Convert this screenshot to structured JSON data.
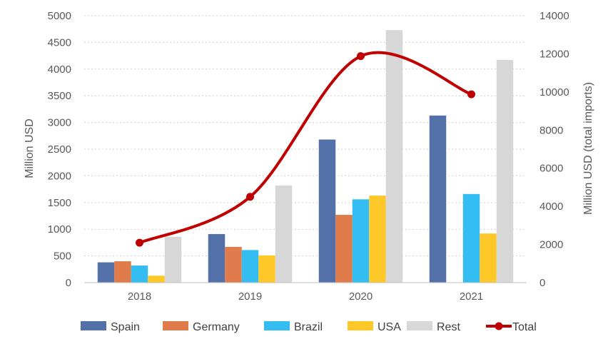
{
  "chart_data": {
    "type": "bar",
    "categories": [
      "2018",
      "2019",
      "2020",
      "2021"
    ],
    "series": [
      {
        "name": "Spain",
        "color": "#5470a8",
        "values": [
          380,
          910,
          2680,
          3130
        ]
      },
      {
        "name": "Germany",
        "color": "#e07b4c",
        "values": [
          400,
          670,
          1270,
          0
        ]
      },
      {
        "name": "Brazil",
        "color": "#33bdf0",
        "values": [
          320,
          610,
          1560,
          1660
        ]
      },
      {
        "name": "USA",
        "color": "#ffc829",
        "values": [
          130,
          510,
          1630,
          920
        ]
      },
      {
        "name": "Rest",
        "color": "#d7d7d7",
        "values": [
          860,
          1820,
          4730,
          4170
        ]
      }
    ],
    "line_series": {
      "name": "Total",
      "color": "#c00000",
      "values": [
        2090,
        4500,
        11880,
        9880
      ],
      "axis": "right"
    },
    "ylabel": "Million USD",
    "y2label": "Million USD (total imports)",
    "ylim": [
      0,
      5000
    ],
    "y2lim": [
      0,
      14000
    ],
    "y_ticks": [
      "0",
      "500",
      "1000",
      "1500",
      "2000",
      "2500",
      "3000",
      "3500",
      "4000",
      "4500",
      "5000"
    ],
    "y2_ticks": [
      "0",
      "2000",
      "4000",
      "6000",
      "8000",
      "10000",
      "12000",
      "14000"
    ],
    "grid": true,
    "legend_position": "bottom"
  }
}
